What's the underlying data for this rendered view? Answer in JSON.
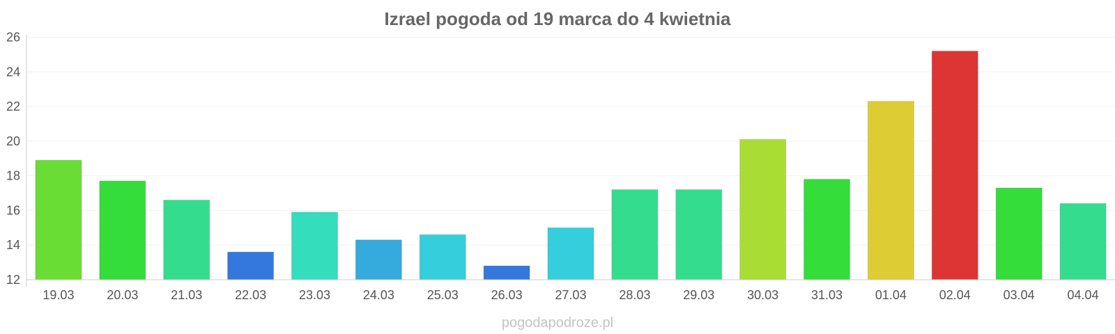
{
  "chart_data": {
    "type": "bar",
    "title": "Izrael pogoda od 19 marca do 4 kwietnia",
    "xlabel": "",
    "ylabel": "",
    "categories": [
      "19.03",
      "20.03",
      "21.03",
      "22.03",
      "23.03",
      "24.03",
      "25.03",
      "26.03",
      "27.03",
      "28.03",
      "29.03",
      "30.03",
      "31.03",
      "01.04",
      "02.04",
      "03.04",
      "04.04"
    ],
    "values": [
      18.9,
      17.7,
      16.6,
      13.6,
      15.9,
      14.3,
      14.6,
      12.8,
      15.0,
      17.2,
      17.2,
      20.1,
      17.8,
      22.3,
      25.2,
      17.3,
      16.4
    ],
    "colors": [
      "#6add34",
      "#34dd3a",
      "#34dd8d",
      "#3478dd",
      "#34ddbb",
      "#34aadd",
      "#34cedd",
      "#3478dd",
      "#34cedd",
      "#34dd8d",
      "#34dd8d",
      "#aadd34",
      "#34dd3a",
      "#ddcc34",
      "#dd3434",
      "#34dd3a",
      "#34dd8d"
    ],
    "ylim": [
      12,
      26
    ],
    "yticks": [
      12,
      14,
      16,
      18,
      20,
      22,
      24,
      26
    ],
    "grid": true,
    "legend": "none"
  },
  "watermark": "pogodapodroze.pl"
}
